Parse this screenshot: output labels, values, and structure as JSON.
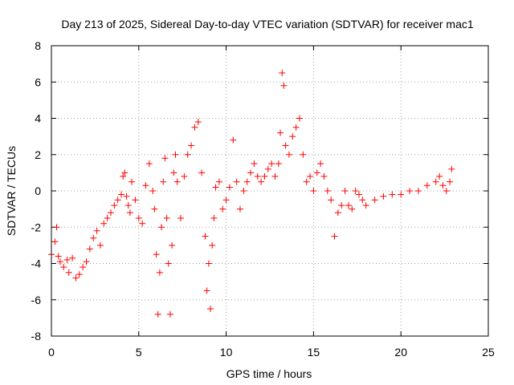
{
  "chart_data": {
    "type": "scatter",
    "title": "Day 213 of 2025, Sidereal Day-to-day VTEC variation (SDTVAR) for receiver mac1",
    "xlabel": "GPS time / hours",
    "ylabel": "SDTVAR / TECUs",
    "xlim": [
      0,
      25
    ],
    "ylim": [
      -8,
      8
    ],
    "xticks": [
      0,
      5,
      10,
      15,
      20,
      25
    ],
    "yticks": [
      -8,
      -6,
      -4,
      -2,
      0,
      2,
      4,
      6,
      8
    ],
    "grid": true,
    "marker": "+",
    "color": "#ff0000",
    "series": [
      {
        "name": "SDTVAR",
        "x": [
          0.0,
          0.2,
          0.3,
          0.4,
          0.5,
          0.7,
          0.9,
          1.0,
          1.2,
          1.4,
          1.6,
          1.8,
          2.0,
          2.2,
          2.4,
          2.6,
          2.8,
          3.0,
          3.2,
          3.4,
          3.6,
          3.8,
          4.0,
          4.1,
          4.2,
          4.3,
          4.4,
          4.5,
          4.6,
          4.8,
          5.0,
          5.2,
          5.4,
          5.6,
          5.8,
          5.9,
          6.0,
          6.1,
          6.2,
          6.3,
          6.4,
          6.5,
          6.6,
          6.7,
          6.8,
          6.9,
          7.0,
          7.1,
          7.2,
          7.4,
          7.6,
          7.8,
          8.0,
          8.2,
          8.4,
          8.6,
          8.8,
          8.9,
          9.0,
          9.1,
          9.2,
          9.3,
          9.4,
          9.6,
          9.8,
          10.0,
          10.2,
          10.4,
          10.6,
          10.8,
          11.0,
          11.2,
          11.4,
          11.6,
          11.8,
          12.0,
          12.2,
          12.4,
          12.6,
          12.8,
          13.0,
          13.1,
          13.2,
          13.3,
          13.4,
          13.6,
          13.8,
          14.0,
          14.2,
          14.4,
          14.6,
          14.8,
          15.0,
          15.2,
          15.4,
          15.6,
          15.8,
          16.0,
          16.2,
          16.4,
          16.6,
          16.8,
          17.0,
          17.2,
          17.4,
          17.6,
          17.8,
          18.0,
          18.5,
          19.0,
          19.5,
          20.0,
          20.5,
          21.0,
          21.5,
          22.0,
          22.2,
          22.4,
          22.6,
          22.8,
          22.9
        ],
        "y": [
          -3.5,
          -2.8,
          -2.0,
          -3.6,
          -3.9,
          -4.2,
          -3.8,
          -4.5,
          -3.7,
          -4.8,
          -4.6,
          -4.2,
          -3.9,
          -3.2,
          -2.6,
          -2.2,
          -3.0,
          -1.8,
          -1.5,
          -1.2,
          -0.8,
          -0.5,
          -0.2,
          0.8,
          1.0,
          -0.3,
          -0.8,
          -1.2,
          0.5,
          -0.5,
          -1.5,
          -1.8,
          0.3,
          1.5,
          0.0,
          -1.0,
          -3.5,
          -6.8,
          -4.5,
          -2.0,
          0.5,
          1.8,
          -1.5,
          -4.0,
          -6.8,
          -3.0,
          1.0,
          2.0,
          0.5,
          -1.5,
          0.8,
          2.0,
          2.5,
          3.5,
          3.8,
          1.0,
          -2.5,
          -5.5,
          -4.0,
          -6.5,
          -3.0,
          -1.5,
          0.2,
          0.5,
          -1.0,
          -0.5,
          0.2,
          2.8,
          0.5,
          -1.0,
          0.0,
          0.5,
          1.0,
          1.5,
          0.8,
          0.5,
          0.8,
          1.2,
          1.5,
          0.8,
          1.5,
          3.2,
          6.5,
          5.8,
          2.5,
          2.0,
          3.0,
          3.5,
          4.0,
          2.0,
          0.5,
          0.8,
          0.0,
          1.0,
          1.5,
          0.8,
          0.0,
          -0.5,
          -2.5,
          -1.2,
          -0.8,
          0.0,
          -0.8,
          -1.0,
          0.0,
          -0.2,
          -0.5,
          -0.8,
          -0.5,
          -0.3,
          -0.2,
          -0.2,
          0.0,
          0.0,
          0.3,
          0.5,
          0.8,
          0.3,
          0.0,
          0.5,
          1.2
        ]
      }
    ]
  }
}
